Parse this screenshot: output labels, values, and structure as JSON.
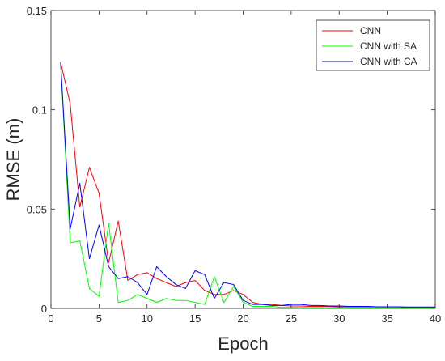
{
  "chart_data": {
    "type": "line",
    "title": "",
    "xlabel": "Epoch",
    "ylabel": "RMSE (m)",
    "xlim": [
      0,
      40
    ],
    "ylim": [
      0,
      0.15
    ],
    "xticks": [
      0,
      5,
      10,
      15,
      20,
      25,
      30,
      35,
      40
    ],
    "yticks": [
      0,
      0.05,
      0.1,
      0.15
    ],
    "xtick_labels": [
      "0",
      "5",
      "10",
      "15",
      "20",
      "25",
      "30",
      "35",
      "40"
    ],
    "ytick_labels": [
      "0",
      "0.05",
      "0.1",
      "0.15"
    ],
    "grid": false,
    "legend_position": "top-right",
    "x": [
      1,
      2,
      3,
      4,
      5,
      6,
      7,
      8,
      9,
      10,
      11,
      12,
      13,
      14,
      15,
      16,
      17,
      18,
      19,
      20,
      21,
      22,
      23,
      24,
      25,
      26,
      27,
      28,
      29,
      30,
      31,
      32,
      33,
      34,
      35,
      36,
      37,
      38,
      39,
      40
    ],
    "series": [
      {
        "name": "CNN",
        "color": "#ff0000",
        "values": [
          0.124,
          0.103,
          0.051,
          0.071,
          0.058,
          0.023,
          0.044,
          0.014,
          0.017,
          0.018,
          0.015,
          0.013,
          0.011,
          0.013,
          0.014,
          0.009,
          0.007,
          0.007,
          0.009,
          0.007,
          0.003,
          0.002,
          0.002,
          0.0015,
          0.0012,
          0.0012,
          0.001,
          0.001,
          0.001,
          0.0008,
          0.0008,
          0.0008,
          0.0008,
          0.0007,
          0.0007,
          0.0007,
          0.0006,
          0.0006,
          0.0006,
          0.0006
        ]
      },
      {
        "name": "CNN with SA",
        "color": "#00ff00",
        "values": [
          0.124,
          0.033,
          0.034,
          0.01,
          0.006,
          0.043,
          0.003,
          0.004,
          0.007,
          0.005,
          0.003,
          0.005,
          0.004,
          0.004,
          0.003,
          0.002,
          0.016,
          0.003,
          0.011,
          0.003,
          0.001,
          0.001,
          0.001,
          0.0005,
          0.0005,
          0.0005,
          0.0004,
          0.0004,
          0.0004,
          0.0004,
          0.0003,
          0.0003,
          0.0003,
          0.0003,
          0.0003,
          0.0003,
          0.0003,
          0.0003,
          0.0003,
          0.0003
        ]
      },
      {
        "name": "CNN with CA",
        "color": "#0000ff",
        "values": [
          0.124,
          0.04,
          0.063,
          0.025,
          0.042,
          0.021,
          0.015,
          0.016,
          0.013,
          0.007,
          0.021,
          0.016,
          0.012,
          0.01,
          0.019,
          0.017,
          0.005,
          0.013,
          0.012,
          0.004,
          0.002,
          0.002,
          0.0015,
          0.0015,
          0.002,
          0.002,
          0.0015,
          0.0015,
          0.0012,
          0.0012,
          0.001,
          0.001,
          0.001,
          0.0008,
          0.0008,
          0.0008,
          0.0007,
          0.0007,
          0.0007,
          0.0007
        ]
      }
    ]
  }
}
